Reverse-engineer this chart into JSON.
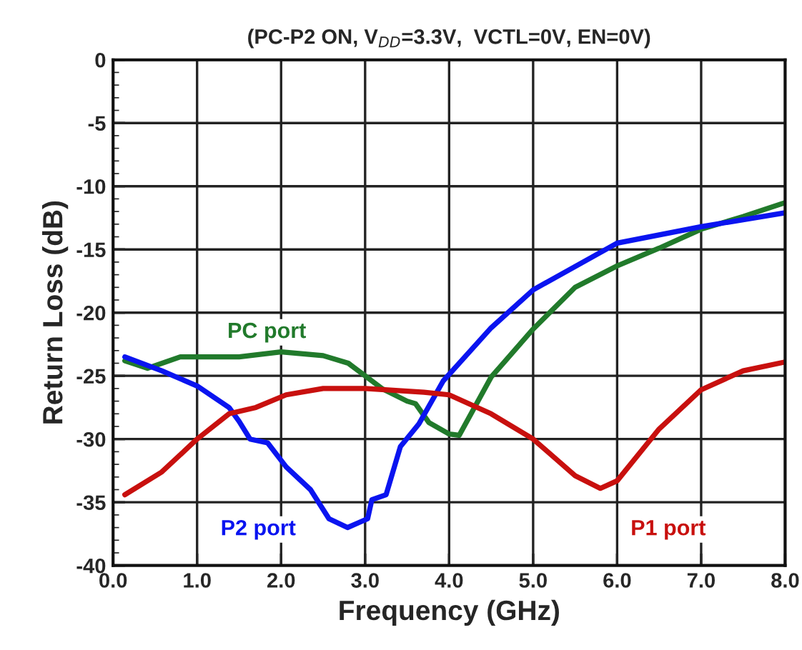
{
  "chart_data": {
    "type": "line",
    "title": "(PC-P2 ON, V$_{DD}$=3.3V,  VCTL=0V, EN=0V)",
    "xlabel": "Frequency (GHz)",
    "ylabel": "Return Loss (dB)",
    "series": [
      {
        "name": "PC port",
        "color": "#217a2b",
        "x": [
          0.14,
          0.41,
          0.8,
          1.5,
          2.0,
          2.5,
          2.8,
          3.0,
          3.2,
          3.5,
          3.6,
          3.76,
          4.0,
          4.12,
          4.5,
          5.0,
          5.5,
          6.0,
          6.5,
          7.0,
          7.5,
          8.0
        ],
        "values": [
          -23.8,
          -24.4,
          -23.5,
          -23.5,
          -23.1,
          -23.4,
          -24.0,
          -25.0,
          -26.0,
          -27.0,
          -27.2,
          -28.7,
          -29.6,
          -29.7,
          -25.1,
          -21.3,
          -18.0,
          -16.3,
          -14.9,
          -13.4,
          -12.4,
          -11.3
        ]
      },
      {
        "name": "P2 port",
        "color": "#0a14f0",
        "x": [
          0.14,
          0.58,
          1.0,
          1.38,
          1.5,
          1.63,
          1.84,
          2.06,
          2.35,
          2.57,
          2.79,
          3.03,
          3.08,
          3.25,
          3.42,
          3.64,
          3.93,
          4.5,
          5.0,
          6.0,
          7.0,
          8.0
        ],
        "values": [
          -23.5,
          -24.6,
          -25.8,
          -27.5,
          -28.6,
          -30.0,
          -30.3,
          -32.2,
          -34.0,
          -36.3,
          -37.0,
          -36.3,
          -34.8,
          -34.4,
          -30.6,
          -28.8,
          -25.4,
          -21.2,
          -18.2,
          -14.5,
          -13.2,
          -12.1
        ]
      },
      {
        "name": "P1 port",
        "color": "#c8100e",
        "x": [
          0.14,
          0.58,
          1.0,
          1.38,
          1.7,
          2.06,
          2.5,
          3.0,
          3.7,
          4.0,
          4.5,
          5.0,
          5.5,
          5.8,
          6.0,
          6.5,
          7.0,
          7.5,
          8.0
        ],
        "values": [
          -34.4,
          -32.6,
          -30.0,
          -28.0,
          -27.5,
          -26.5,
          -26.0,
          -26.0,
          -26.3,
          -26.5,
          -28.0,
          -30.0,
          -32.9,
          -33.9,
          -33.3,
          -29.2,
          -26.1,
          -24.6,
          -23.9
        ]
      }
    ],
    "xlim": [
      0,
      8
    ],
    "xticks": [
      {
        "value": 0,
        "label": "0.0"
      },
      {
        "value": 1,
        "label": "1.0"
      },
      {
        "value": 2,
        "label": "2.0"
      },
      {
        "value": 3,
        "label": "3.0"
      },
      {
        "value": 4,
        "label": "4.0"
      },
      {
        "value": 5,
        "label": "5.0"
      },
      {
        "value": 6,
        "label": "6.0"
      },
      {
        "value": 7,
        "label": "7.0"
      },
      {
        "value": 8,
        "label": "8.0"
      }
    ],
    "ylim": [
      -40,
      0
    ],
    "yticks": [
      0,
      -5,
      -10,
      -15,
      -20,
      -25,
      -30,
      -35,
      -40
    ],
    "grid": true,
    "legend": false,
    "marker": "none",
    "line_style": "solid"
  }
}
